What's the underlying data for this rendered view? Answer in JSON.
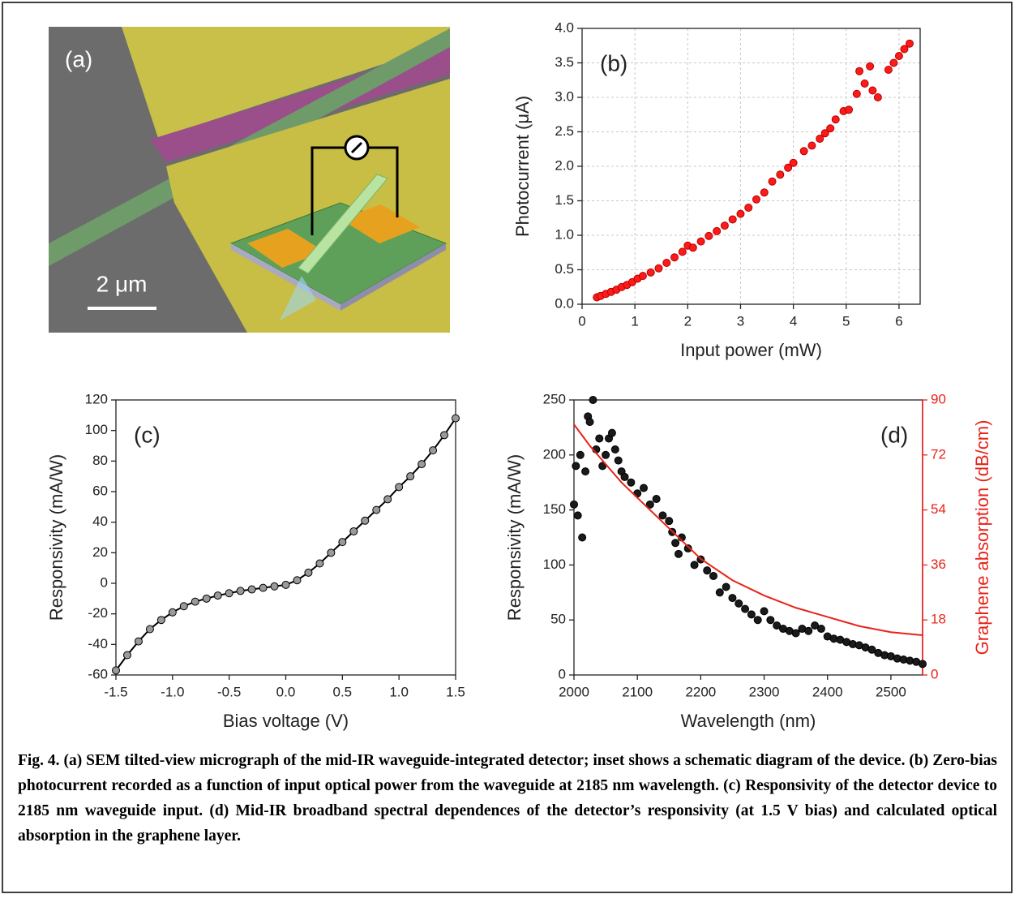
{
  "panel_a": {
    "label": "(a)",
    "scale_bar": "2 μm"
  },
  "chart_data": [
    {
      "type": "scatter",
      "panel_label": "(b)",
      "x_label": "Input power (mW)",
      "y_label": "Photocurrent (μA)",
      "xlim": [
        0,
        6.4
      ],
      "xticks": [
        0,
        1,
        2,
        3,
        4,
        5,
        6
      ],
      "ylim": [
        0,
        4
      ],
      "yticks": [
        {
          "value": 0,
          "label": "0.0"
        },
        0.5,
        {
          "value": 1,
          "label": "1.0"
        },
        1.5,
        {
          "value": 2,
          "label": "2.0"
        },
        2.5,
        {
          "value": 3,
          "label": "3.0"
        },
        3.5,
        {
          "value": 4,
          "label": "4.0"
        }
      ],
      "grid": true,
      "series": [
        {
          "mode": "markers",
          "color": "#ff1a1a",
          "edge_color": "#b30000",
          "x": [
            0.28,
            0.35,
            0.45,
            0.55,
            0.65,
            0.75,
            0.85,
            0.95,
            1.05,
            1.15,
            1.3,
            1.45,
            1.6,
            1.75,
            1.9,
            2.0,
            2.1,
            2.25,
            2.4,
            2.55,
            2.7,
            2.85,
            3.0,
            3.15,
            3.3,
            3.45,
            3.6,
            3.75,
            3.9,
            4.0,
            4.2,
            4.35,
            4.5,
            4.6,
            4.7,
            4.8,
            4.95,
            5.05,
            5.2,
            5.25,
            5.35,
            5.45,
            5.5,
            5.6,
            5.8,
            5.9,
            6.0,
            6.1,
            6.2
          ],
          "values": [
            0.1,
            0.12,
            0.15,
            0.18,
            0.21,
            0.25,
            0.28,
            0.32,
            0.37,
            0.41,
            0.46,
            0.52,
            0.6,
            0.68,
            0.76,
            0.85,
            0.82,
            0.91,
            0.99,
            1.06,
            1.14,
            1.23,
            1.31,
            1.4,
            1.52,
            1.62,
            1.78,
            1.88,
            1.98,
            2.05,
            2.22,
            2.3,
            2.4,
            2.48,
            2.55,
            2.68,
            2.8,
            2.82,
            3.05,
            3.38,
            3.2,
            3.45,
            3.1,
            3.0,
            3.4,
            3.5,
            3.6,
            3.7,
            3.78
          ]
        }
      ]
    },
    {
      "type": "line",
      "panel_label": "(c)",
      "x_label": "Bias voltage (V)",
      "y_label": "Responsivity (mA/W)",
      "xlim": [
        -1.5,
        1.5
      ],
      "xticks": [
        -1.5,
        {
          "value": -1,
          "label": "-1.0"
        },
        -0.5,
        {
          "value": 0,
          "label": "0.0"
        },
        0.5,
        {
          "value": 1,
          "label": "1.0"
        },
        1.5
      ],
      "ylim": [
        -60,
        120
      ],
      "yticks": [
        -60,
        -40,
        -20,
        0,
        20,
        40,
        60,
        80,
        100,
        120
      ],
      "grid": false,
      "series": [
        {
          "mode": "line+markers",
          "color": "#000000",
          "marker_color": "#9a9a9a",
          "edge_color": "#000000",
          "x": [
            -1.5,
            -1.4,
            -1.3,
            -1.2,
            -1.1,
            -1.0,
            -0.9,
            -0.8,
            -0.7,
            -0.6,
            -0.5,
            -0.4,
            -0.3,
            -0.2,
            -0.1,
            0,
            0.1,
            0.2,
            0.3,
            0.4,
            0.5,
            0.6,
            0.7,
            0.8,
            0.9,
            1.0,
            1.1,
            1.2,
            1.3,
            1.4,
            1.5
          ],
          "values": [
            -57,
            -47,
            -38,
            -30,
            -24,
            -19,
            -15,
            -12,
            -10,
            -8,
            -6.5,
            -5,
            -4,
            -3,
            -2,
            -1,
            2,
            7,
            13,
            20,
            27,
            34,
            41,
            48,
            55,
            63,
            70,
            78,
            87,
            97,
            108
          ]
        }
      ]
    },
    {
      "type": "scatter",
      "panel_label": "(d)",
      "x_label": "Wavelength (nm)",
      "y_label": "Responsivity (mA/W)",
      "y2_label": "Graphene absorption (dB/cm)",
      "xlim": [
        2000,
        2550
      ],
      "xticks": [
        2000,
        2100,
        2200,
        2300,
        2400,
        2500
      ],
      "ylim": [
        0,
        250
      ],
      "yticks": [
        0,
        50,
        100,
        150,
        200,
        250
      ],
      "y2lim": [
        0,
        90
      ],
      "y2ticks": [
        0,
        18,
        36,
        54,
        72,
        90
      ],
      "y2_color": "#e8231a",
      "grid": false,
      "series": [
        {
          "mode": "markers",
          "color": "#1a1a1a",
          "edge_color": "#000000",
          "x": [
            2000,
            2003,
            2006,
            2010,
            2013,
            2018,
            2022,
            2025,
            2030,
            2035,
            2040,
            2045,
            2050,
            2055,
            2060,
            2065,
            2070,
            2075,
            2080,
            2090,
            2100,
            2110,
            2120,
            2130,
            2140,
            2150,
            2155,
            2160,
            2165,
            2170,
            2180,
            2190,
            2200,
            2210,
            2220,
            2230,
            2240,
            2250,
            2260,
            2270,
            2280,
            2290,
            2300,
            2310,
            2320,
            2330,
            2340,
            2350,
            2360,
            2370,
            2380,
            2390,
            2400,
            2410,
            2420,
            2430,
            2440,
            2450,
            2460,
            2470,
            2480,
            2490,
            2500,
            2510,
            2520,
            2530,
            2540,
            2550
          ],
          "values": [
            155,
            190,
            145,
            200,
            125,
            185,
            235,
            230,
            250,
            205,
            215,
            190,
            200,
            215,
            220,
            205,
            195,
            185,
            180,
            175,
            165,
            170,
            155,
            160,
            145,
            140,
            130,
            120,
            110,
            125,
            115,
            100,
            105,
            95,
            90,
            75,
            80,
            70,
            65,
            60,
            55,
            50,
            58,
            50,
            45,
            42,
            40,
            38,
            42,
            40,
            45,
            42,
            35,
            33,
            32,
            30,
            28,
            27,
            25,
            23,
            20,
            18,
            17,
            15,
            14,
            13,
            12,
            10
          ]
        },
        {
          "mode": "line",
          "axis": "y2",
          "color": "#e8231a",
          "x": [
            2000,
            2025,
            2050,
            2075,
            2100,
            2150,
            2200,
            2250,
            2300,
            2350,
            2400,
            2450,
            2500,
            2550
          ],
          "values": [
            82,
            75,
            69,
            63,
            58,
            48,
            38,
            31,
            26,
            22,
            19,
            16,
            14,
            13
          ]
        }
      ]
    }
  ],
  "caption": "Fig. 4.  (a) SEM tilted-view micrograph of the mid-IR waveguide-integrated detector; inset shows a schematic diagram of the device. (b) Zero-bias photocurrent recorded as a function of input optical power from the waveguide at 2185 nm wavelength. (c) Responsivity of the detector device to 2185 nm waveguide input. (d) Mid-IR broadband spectral dependences of the detector’s responsivity (at 1.5 V bias) and calculated optical absorption in the graphene layer."
}
